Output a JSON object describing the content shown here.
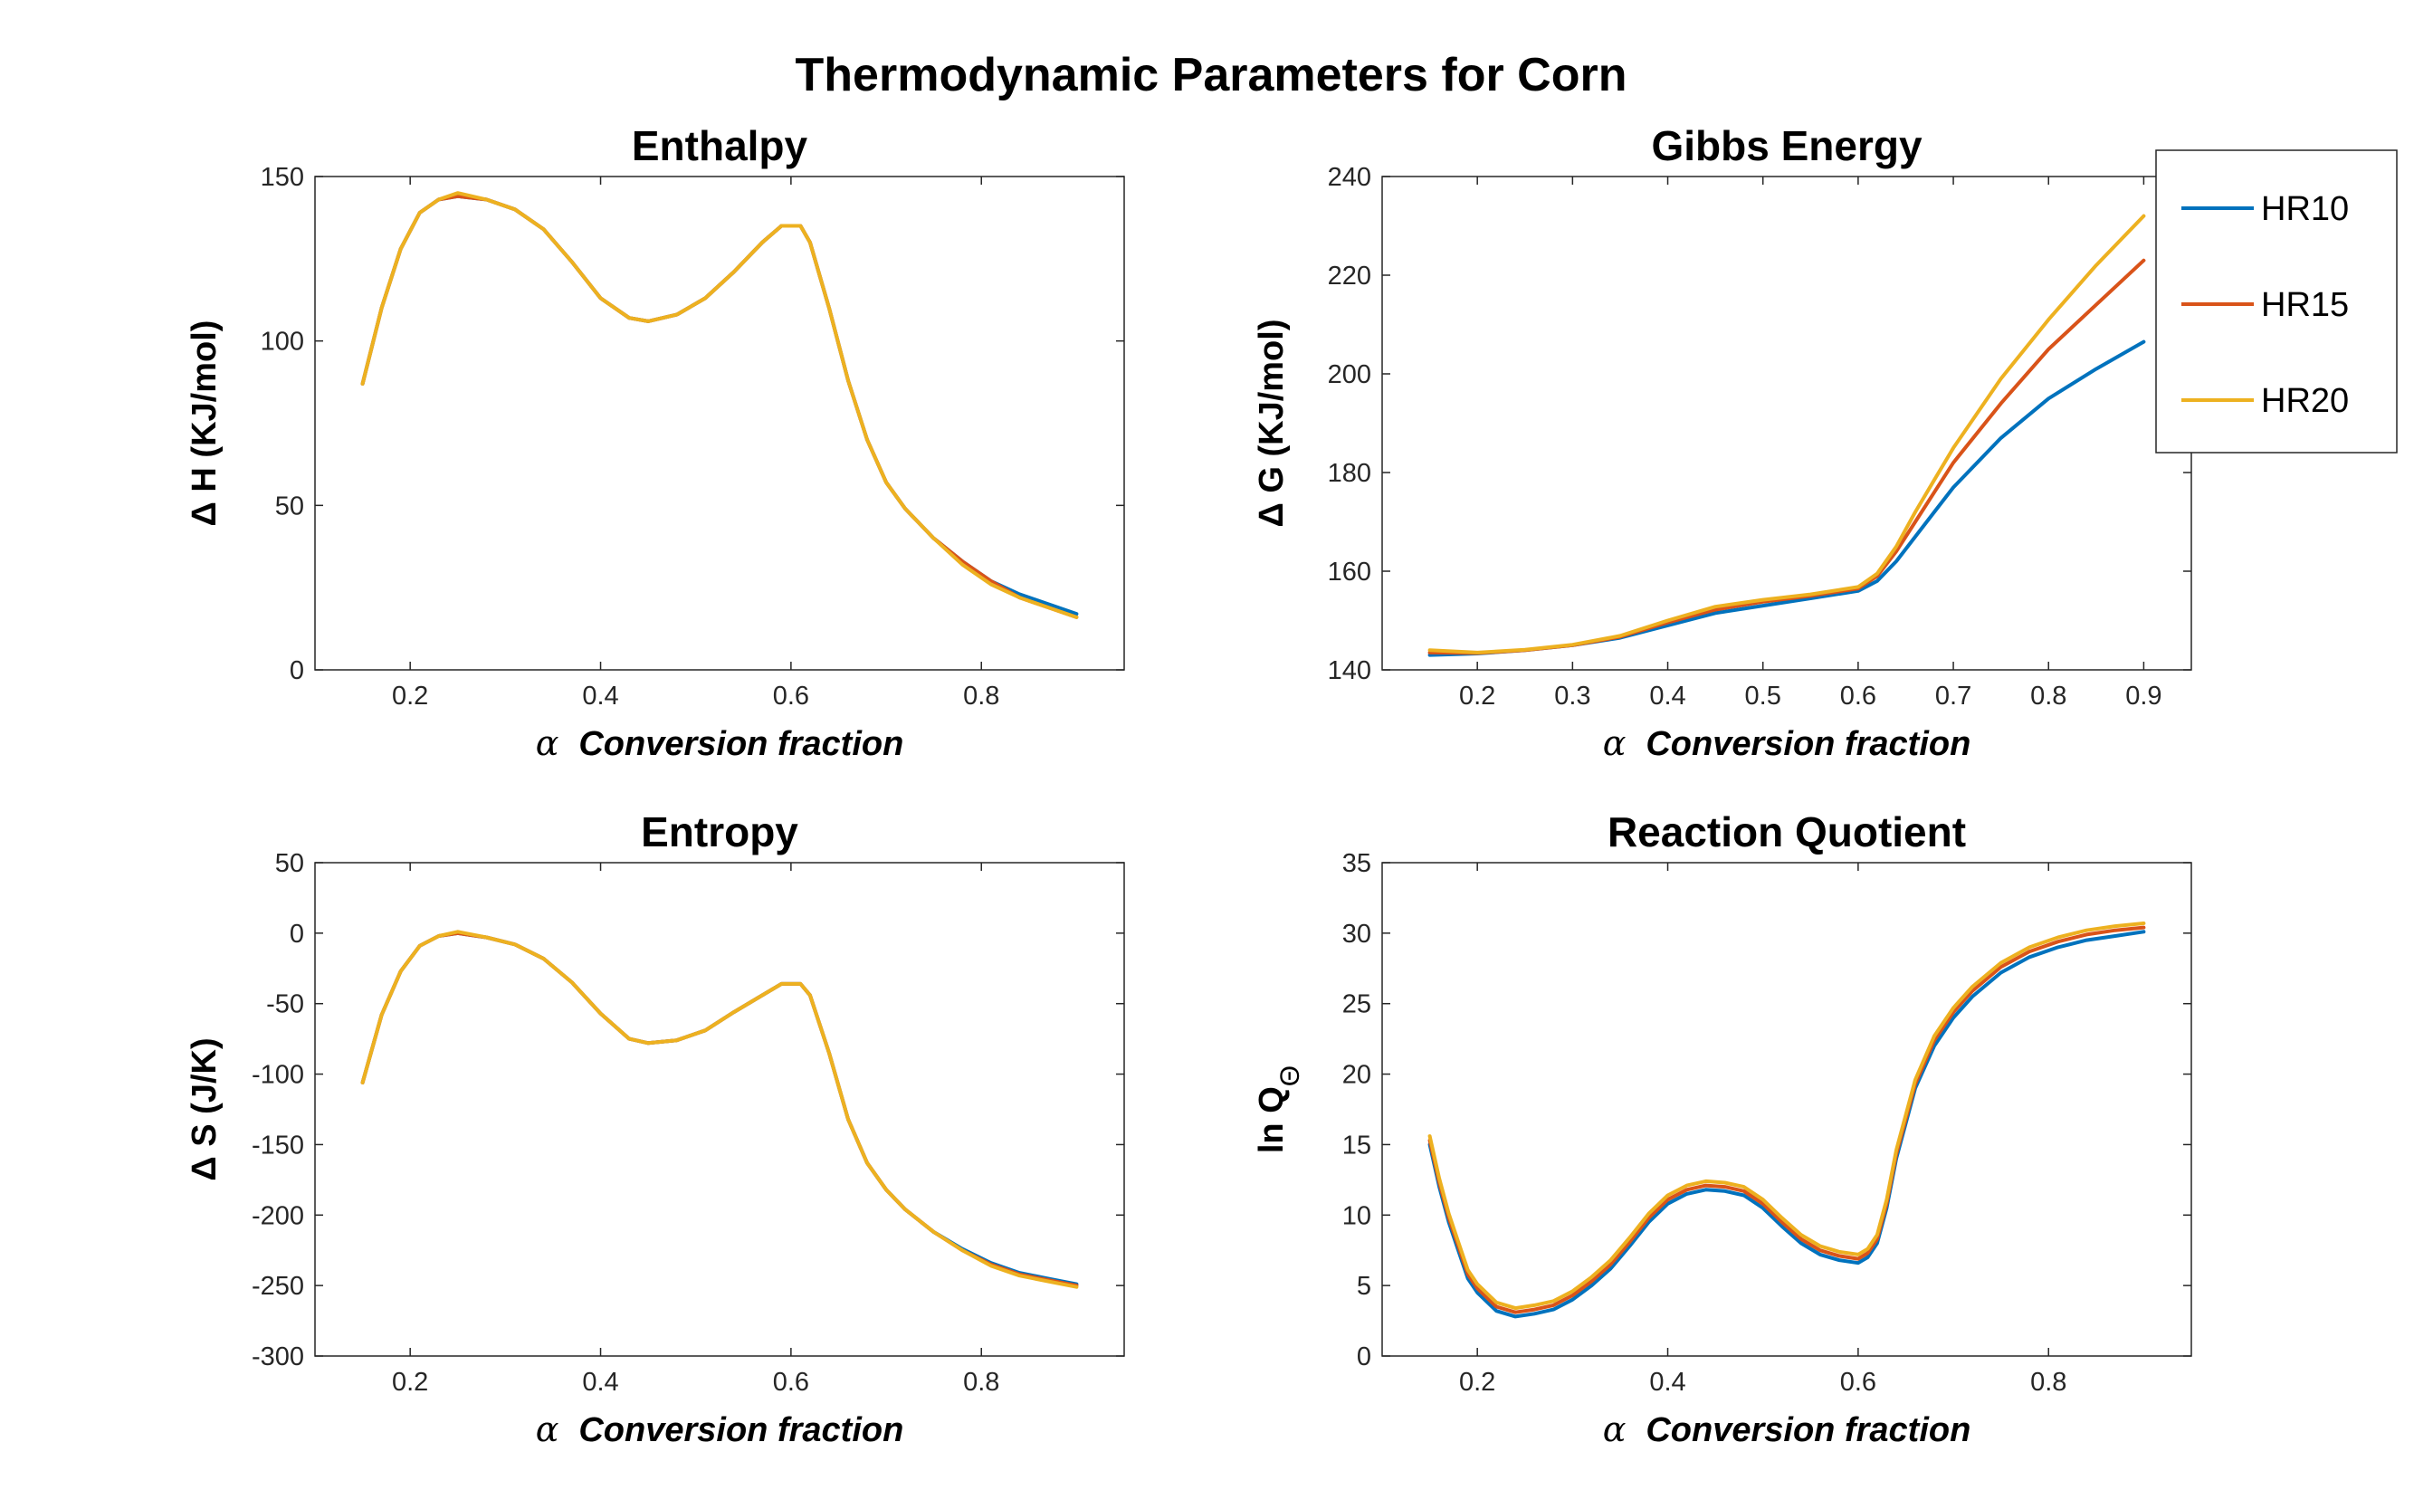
{
  "figure_title": "Thermodynamic Parameters for Corn",
  "colors": {
    "HR10": "#0072BD",
    "HR15": "#D95319",
    "HR20": "#EDB120"
  },
  "legend": {
    "entries": [
      "HR10",
      "HR15",
      "HR20"
    ]
  },
  "chart_data": [
    {
      "type": "line",
      "title": "Enthalpy",
      "xlabel_symbol": "α",
      "xlabel": "Conversion fraction",
      "ylabel": "Δ H (KJ/mol)",
      "xlim": [
        0.1,
        0.95
      ],
      "ylim": [
        0,
        150
      ],
      "xticks": [
        0.2,
        0.4,
        0.6,
        0.8
      ],
      "xtick_labels": [
        "0.2",
        "0.4",
        "0.6",
        "0.8"
      ],
      "yticks": [
        0,
        50,
        100,
        150
      ],
      "ytick_labels": [
        "0",
        "50",
        "100",
        "150"
      ],
      "grid": false,
      "series": [
        {
          "name": "HR10",
          "x": [
            0.15,
            0.17,
            0.19,
            0.21,
            0.23,
            0.25,
            0.28,
            0.31,
            0.34,
            0.37,
            0.4,
            0.43,
            0.45,
            0.48,
            0.51,
            0.54,
            0.57,
            0.59,
            0.61,
            0.62,
            0.64,
            0.66,
            0.68,
            0.7,
            0.72,
            0.75,
            0.78,
            0.81,
            0.84,
            0.87,
            0.9
          ],
          "y": [
            87,
            110,
            128,
            139,
            143,
            144,
            143,
            140,
            134,
            124,
            113,
            107,
            106,
            108,
            113,
            121,
            130,
            135,
            135,
            130,
            110,
            88,
            70,
            57,
            49,
            40,
            33,
            27,
            23,
            20,
            17
          ]
        },
        {
          "name": "HR15",
          "x": [
            0.15,
            0.17,
            0.19,
            0.21,
            0.23,
            0.25,
            0.28,
            0.31,
            0.34,
            0.37,
            0.4,
            0.43,
            0.45,
            0.48,
            0.51,
            0.54,
            0.57,
            0.59,
            0.61,
            0.62,
            0.64,
            0.66,
            0.68,
            0.7,
            0.72,
            0.75,
            0.78,
            0.81,
            0.84,
            0.87,
            0.9
          ],
          "y": [
            87,
            110,
            128,
            139,
            143,
            144,
            143,
            140,
            134,
            124,
            113,
            107,
            106,
            108,
            113,
            121,
            130,
            135,
            135,
            130,
            110,
            88,
            70,
            57,
            49,
            40,
            33,
            27,
            22,
            19,
            16
          ]
        },
        {
          "name": "HR20",
          "x": [
            0.15,
            0.17,
            0.19,
            0.21,
            0.23,
            0.25,
            0.28,
            0.31,
            0.34,
            0.37,
            0.4,
            0.43,
            0.45,
            0.48,
            0.51,
            0.54,
            0.57,
            0.59,
            0.61,
            0.62,
            0.64,
            0.66,
            0.68,
            0.7,
            0.72,
            0.75,
            0.78,
            0.81,
            0.84,
            0.87,
            0.9
          ],
          "y": [
            87,
            110,
            128,
            139,
            143,
            145,
            143,
            140,
            134,
            124,
            113,
            107,
            106,
            108,
            113,
            121,
            130,
            135,
            135,
            130,
            110,
            88,
            70,
            57,
            49,
            40,
            32,
            26,
            22,
            19,
            16
          ]
        }
      ]
    },
    {
      "type": "line",
      "title": "Gibbs Energy",
      "xlabel_symbol": "α",
      "xlabel": "Conversion fraction",
      "ylabel": "Δ G (KJ/mol)",
      "xlim": [
        0.1,
        0.95
      ],
      "ylim": [
        140,
        240
      ],
      "xticks": [
        0.2,
        0.3,
        0.4,
        0.5,
        0.6,
        0.7,
        0.8,
        0.9
      ],
      "xtick_labels": [
        "0.2",
        "0.3",
        "0.4",
        "0.5",
        "0.6",
        "0.7",
        "0.8",
        "0.9"
      ],
      "yticks": [
        140,
        160,
        180,
        200,
        220,
        240
      ],
      "ytick_labels": [
        "140",
        "160",
        "180",
        "200",
        "220",
        "240"
      ],
      "grid": false,
      "legend_position": "top-right, outside",
      "series": [
        {
          "name": "HR10",
          "x": [
            0.15,
            0.2,
            0.25,
            0.3,
            0.35,
            0.4,
            0.45,
            0.5,
            0.55,
            0.6,
            0.62,
            0.64,
            0.66,
            0.68,
            0.7,
            0.75,
            0.8,
            0.85,
            0.9
          ],
          "y": [
            143,
            143.3,
            144,
            145,
            146.5,
            149,
            151.5,
            153,
            154.5,
            156,
            158,
            162,
            167,
            172,
            177,
            187,
            195,
            201,
            206.5
          ]
        },
        {
          "name": "HR15",
          "x": [
            0.15,
            0.2,
            0.25,
            0.3,
            0.35,
            0.4,
            0.45,
            0.5,
            0.55,
            0.6,
            0.62,
            0.64,
            0.66,
            0.68,
            0.7,
            0.75,
            0.8,
            0.85,
            0.9
          ],
          "y": [
            143.5,
            143.4,
            144,
            145,
            146.7,
            149.6,
            152.2,
            153.8,
            155,
            156.5,
            159,
            164,
            170,
            176,
            182,
            194,
            205,
            214,
            223
          ]
        },
        {
          "name": "HR20",
          "x": [
            0.15,
            0.2,
            0.25,
            0.3,
            0.35,
            0.4,
            0.45,
            0.5,
            0.55,
            0.6,
            0.62,
            0.64,
            0.66,
            0.68,
            0.7,
            0.75,
            0.8,
            0.85,
            0.9
          ],
          "y": [
            144,
            143.5,
            144.1,
            145.1,
            146.9,
            150,
            152.8,
            154.2,
            155.3,
            156.8,
            159.5,
            165,
            172,
            178.5,
            185,
            199,
            211,
            222,
            232
          ]
        }
      ]
    },
    {
      "type": "line",
      "title": "Entropy",
      "xlabel_symbol": "α",
      "xlabel": "Conversion fraction",
      "ylabel": "Δ S (J/K)",
      "xlim": [
        0.1,
        0.95
      ],
      "ylim": [
        -300,
        50
      ],
      "xticks": [
        0.2,
        0.4,
        0.6,
        0.8
      ],
      "xtick_labels": [
        "0.2",
        "0.4",
        "0.6",
        "0.8"
      ],
      "yticks": [
        -300,
        -250,
        -200,
        -150,
        -100,
        -50,
        0,
        50
      ],
      "ytick_labels": [
        "-300",
        "-250",
        "-200",
        "-150",
        "-100",
        "-50",
        "0",
        "50"
      ],
      "grid": false,
      "series": [
        {
          "name": "HR10",
          "x": [
            0.15,
            0.17,
            0.19,
            0.21,
            0.23,
            0.25,
            0.28,
            0.31,
            0.34,
            0.37,
            0.4,
            0.43,
            0.45,
            0.48,
            0.51,
            0.54,
            0.57,
            0.59,
            0.61,
            0.62,
            0.64,
            0.66,
            0.68,
            0.7,
            0.72,
            0.75,
            0.78,
            0.81,
            0.84,
            0.87,
            0.9
          ],
          "y": [
            -106,
            -58,
            -27,
            -9,
            -2,
            0,
            -3,
            -8,
            -18,
            -35,
            -57,
            -75,
            -78,
            -76,
            -69,
            -56,
            -44,
            -36,
            -36,
            -44,
            -85,
            -132,
            -163,
            -182,
            -196,
            -212,
            -224,
            -234,
            -241,
            -245,
            -249
          ]
        },
        {
          "name": "HR15",
          "x": [
            0.15,
            0.17,
            0.19,
            0.21,
            0.23,
            0.25,
            0.28,
            0.31,
            0.34,
            0.37,
            0.4,
            0.43,
            0.45,
            0.48,
            0.51,
            0.54,
            0.57,
            0.59,
            0.61,
            0.62,
            0.64,
            0.66,
            0.68,
            0.7,
            0.72,
            0.75,
            0.78,
            0.81,
            0.84,
            0.87,
            0.9
          ],
          "y": [
            -106,
            -58,
            -27,
            -9,
            -2,
            0,
            -3,
            -8,
            -18,
            -35,
            -57,
            -75,
            -78,
            -76,
            -69,
            -56,
            -44,
            -36,
            -36,
            -44,
            -85,
            -132,
            -163,
            -182,
            -196,
            -212,
            -225,
            -235,
            -242,
            -246,
            -250
          ]
        },
        {
          "name": "HR20",
          "x": [
            0.15,
            0.17,
            0.19,
            0.21,
            0.23,
            0.25,
            0.28,
            0.31,
            0.34,
            0.37,
            0.4,
            0.43,
            0.45,
            0.48,
            0.51,
            0.54,
            0.57,
            0.59,
            0.61,
            0.62,
            0.64,
            0.66,
            0.68,
            0.7,
            0.72,
            0.75,
            0.78,
            0.81,
            0.84,
            0.87,
            0.9
          ],
          "y": [
            -106,
            -58,
            -27,
            -9,
            -2,
            1,
            -3,
            -8,
            -18,
            -35,
            -57,
            -75,
            -78,
            -76,
            -69,
            -56,
            -44,
            -36,
            -36,
            -44,
            -85,
            -132,
            -163,
            -182,
            -196,
            -212,
            -225,
            -236,
            -243,
            -247,
            -251
          ]
        }
      ]
    },
    {
      "type": "line",
      "title": "Reaction Quotient",
      "xlabel_symbol": "α",
      "xlabel": "Conversion fraction",
      "ylabel": "ln Q",
      "ylabel_subscript": "Θ",
      "xlim": [
        0.1,
        0.95
      ],
      "ylim": [
        0,
        35
      ],
      "xticks": [
        0.2,
        0.4,
        0.6,
        0.8
      ],
      "xtick_labels": [
        "0.2",
        "0.4",
        "0.6",
        "0.8"
      ],
      "yticks": [
        0,
        5,
        10,
        15,
        20,
        25,
        30,
        35
      ],
      "ytick_labels": [
        "0",
        "5",
        "10",
        "15",
        "20",
        "25",
        "30",
        "35"
      ],
      "grid": false,
      "series": [
        {
          "name": "HR10",
          "x": [
            0.15,
            0.16,
            0.17,
            0.18,
            0.19,
            0.2,
            0.22,
            0.24,
            0.26,
            0.28,
            0.3,
            0.32,
            0.34,
            0.36,
            0.38,
            0.4,
            0.42,
            0.44,
            0.46,
            0.48,
            0.5,
            0.52,
            0.54,
            0.56,
            0.58,
            0.6,
            0.61,
            0.62,
            0.63,
            0.64,
            0.66,
            0.68,
            0.7,
            0.72,
            0.75,
            0.78,
            0.81,
            0.84,
            0.87,
            0.9
          ],
          "y": [
            15,
            12,
            9.5,
            7.5,
            5.5,
            4.5,
            3.2,
            2.8,
            3.0,
            3.3,
            4.0,
            5.0,
            6.2,
            7.8,
            9.5,
            10.8,
            11.5,
            11.8,
            11.7,
            11.4,
            10.5,
            9.2,
            8.0,
            7.2,
            6.8,
            6.6,
            7.0,
            8.0,
            10.5,
            14.0,
            19.0,
            22.0,
            24.0,
            25.5,
            27.2,
            28.3,
            29.0,
            29.5,
            29.8,
            30.1
          ]
        },
        {
          "name": "HR15",
          "x": [
            0.15,
            0.16,
            0.17,
            0.18,
            0.19,
            0.2,
            0.22,
            0.24,
            0.26,
            0.28,
            0.3,
            0.32,
            0.34,
            0.36,
            0.38,
            0.4,
            0.42,
            0.44,
            0.46,
            0.48,
            0.5,
            0.52,
            0.54,
            0.56,
            0.58,
            0.6,
            0.61,
            0.62,
            0.63,
            0.64,
            0.66,
            0.68,
            0.7,
            0.72,
            0.75,
            0.78,
            0.81,
            0.84,
            0.87,
            0.9
          ],
          "y": [
            15.3,
            12.3,
            9.8,
            7.8,
            5.8,
            4.8,
            3.5,
            3.1,
            3.3,
            3.6,
            4.3,
            5.3,
            6.5,
            8.1,
            9.8,
            11.1,
            11.8,
            12.1,
            12.0,
            11.7,
            10.8,
            9.5,
            8.3,
            7.5,
            7.1,
            6.9,
            7.3,
            8.3,
            10.8,
            14.3,
            19.3,
            22.4,
            24.4,
            25.9,
            27.6,
            28.7,
            29.4,
            29.9,
            30.2,
            30.4
          ]
        },
        {
          "name": "HR20",
          "x": [
            0.15,
            0.16,
            0.17,
            0.18,
            0.19,
            0.2,
            0.22,
            0.24,
            0.26,
            0.28,
            0.3,
            0.32,
            0.34,
            0.36,
            0.38,
            0.4,
            0.42,
            0.44,
            0.46,
            0.48,
            0.5,
            0.52,
            0.54,
            0.56,
            0.58,
            0.6,
            0.61,
            0.62,
            0.63,
            0.64,
            0.66,
            0.68,
            0.7,
            0.72,
            0.75,
            0.78,
            0.81,
            0.84,
            0.87,
            0.9
          ],
          "y": [
            15.6,
            12.6,
            10.1,
            8.1,
            6.1,
            5.1,
            3.8,
            3.4,
            3.6,
            3.9,
            4.6,
            5.6,
            6.8,
            8.4,
            10.1,
            11.4,
            12.1,
            12.4,
            12.3,
            12.0,
            11.1,
            9.8,
            8.6,
            7.8,
            7.4,
            7.2,
            7.6,
            8.6,
            11.1,
            14.6,
            19.6,
            22.7,
            24.7,
            26.2,
            27.9,
            29.0,
            29.7,
            30.2,
            30.5,
            30.7
          ]
        }
      ]
    }
  ]
}
